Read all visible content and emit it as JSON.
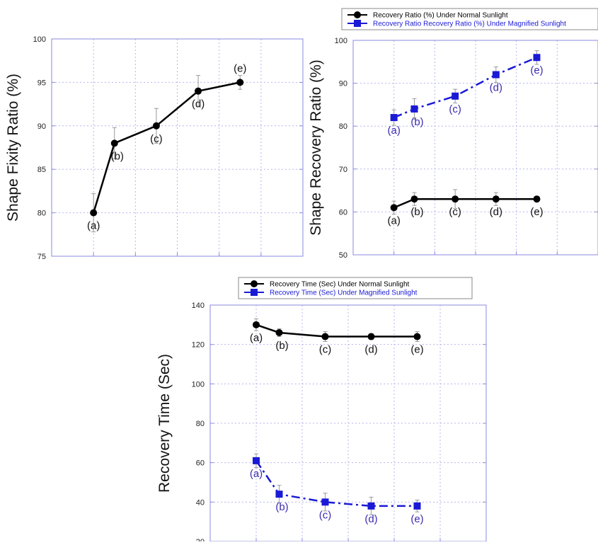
{
  "colors": {
    "normal": "#000000",
    "magnified": "#1a1ad6",
    "label_magnified": "#3b2bb0",
    "grid": "#b6b6ee",
    "frame": "#8a8adf"
  },
  "chart_data": [
    {
      "id": "fixity",
      "type": "line",
      "ylabel": "Shape Fixity Ratio (%)",
      "ylim": [
        75,
        100
      ],
      "yticks": [
        75,
        80,
        85,
        90,
        95,
        100
      ],
      "xlim": [
        0,
        6
      ],
      "xgrid": [
        1,
        2,
        3,
        4,
        5
      ],
      "grid": true,
      "legend": [],
      "series": [
        {
          "name": "",
          "color": "#000000",
          "marker": "circle",
          "dash": "solid",
          "x": [
            1,
            1.5,
            2.5,
            3.5,
            4.5
          ],
          "y": [
            80,
            88,
            90,
            94,
            95
          ],
          "err": [
            2.2,
            1.8,
            2.0,
            1.8,
            0.8
          ],
          "labels": [
            "(a)",
            "(b)",
            "(c)",
            "(d)",
            "(e)"
          ],
          "label_pos": [
            "below",
            "below",
            "below",
            "below",
            "above"
          ]
        }
      ]
    },
    {
      "id": "recovery-ratio",
      "type": "line",
      "ylabel": "Shape Recovery Ratio (%)",
      "ylim": [
        50,
        100
      ],
      "yticks": [
        50,
        60,
        70,
        80,
        90,
        100
      ],
      "xlim": [
        0,
        6
      ],
      "xgrid": [
        1,
        2,
        3,
        4,
        5
      ],
      "grid": true,
      "legend": [
        "Recovery Ratio (%) Under Normal Sunlight",
        "Recovery Ratio Recovery Ratio (%) Under Magnified Sunlight"
      ],
      "series": [
        {
          "name": "Recovery Ratio (%) Under Normal Sunlight",
          "color": "#000000",
          "marker": "circle",
          "dash": "solid",
          "x": [
            1,
            1.5,
            2.5,
            3.5,
            4.5
          ],
          "y": [
            61,
            63,
            63,
            63,
            63
          ],
          "err": [
            1.5,
            1.5,
            2.2,
            1.5,
            0.6
          ],
          "labels": [
            "(a)",
            "(b)",
            "(c)",
            "(d)",
            "(e)"
          ],
          "label_pos": [
            "below",
            "below",
            "below",
            "below",
            "below"
          ]
        },
        {
          "name": "Recovery Ratio Recovery Ratio (%) Under Magnified Sunlight",
          "color": "#1a1ad6",
          "marker": "square",
          "dash": "dashdot",
          "x": [
            1,
            1.5,
            2.5,
            3.5,
            4.5
          ],
          "y": [
            82,
            84,
            87,
            92,
            96
          ],
          "err": [
            1.8,
            2.4,
            1.6,
            1.8,
            1.6
          ],
          "labels": [
            "(a)",
            "(b)",
            "(c)",
            "(d)",
            "(e)"
          ],
          "label_pos": [
            "below",
            "below",
            "below",
            "below",
            "below"
          ]
        }
      ]
    },
    {
      "id": "recovery-time",
      "type": "line",
      "ylabel": "Recovery Time (Sec)",
      "ylim": [
        20,
        140
      ],
      "yticks": [
        20,
        40,
        60,
        80,
        100,
        120,
        140
      ],
      "xlim": [
        0,
        6
      ],
      "xgrid": [
        1,
        2,
        3,
        4,
        5
      ],
      "grid": true,
      "legend": [
        "Recovery Time (Sec) Under Normal Sunlight",
        "Recovery Time (Sec) Under Magnified Sunlight"
      ],
      "series": [
        {
          "name": "Recovery Time (Sec) Under Normal Sunlight",
          "color": "#000000",
          "marker": "circle",
          "dash": "solid",
          "x": [
            1,
            1.5,
            2.5,
            3.5,
            4.5
          ],
          "y": [
            130,
            126,
            124,
            124,
            124
          ],
          "err": [
            3,
            2,
            2.5,
            1.5,
            2.5
          ],
          "labels": [
            "(a)",
            "(b)",
            "(c)",
            "(d)",
            "(e)"
          ],
          "label_pos": [
            "below",
            "below",
            "below",
            "below",
            "below"
          ]
        },
        {
          "name": "Recovery Time (Sec) Under Magnified Sunlight",
          "color": "#1a1ad6",
          "marker": "square",
          "dash": "dashdot",
          "x": [
            1,
            1.5,
            2.5,
            3.5,
            4.5
          ],
          "y": [
            61,
            44,
            40,
            38,
            38
          ],
          "err": [
            3.5,
            4.5,
            4.5,
            4.5,
            3
          ],
          "labels": [
            "(a)",
            "(b)",
            "(c)",
            "(d)",
            "(e)"
          ],
          "label_pos": [
            "below",
            "below",
            "below",
            "below",
            "below"
          ]
        }
      ]
    }
  ]
}
